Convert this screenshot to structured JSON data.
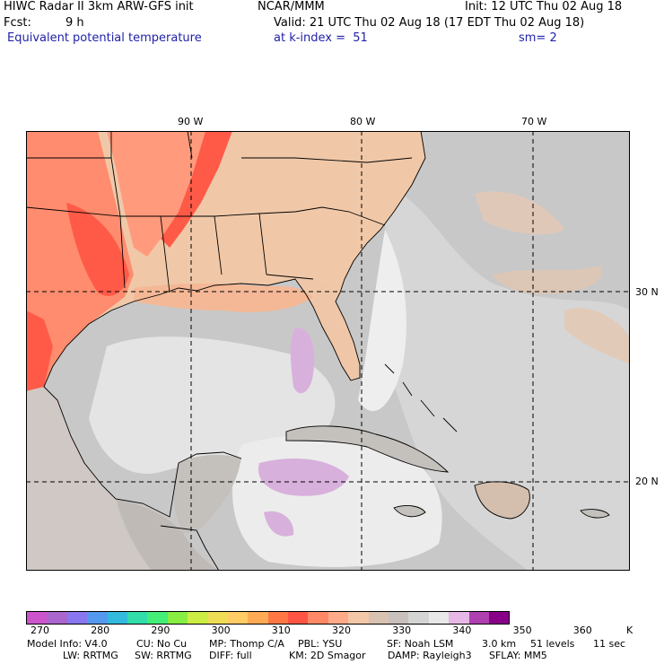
{
  "header": {
    "model": "HIWC Radar II 3km ARW-GFS init",
    "org": "NCAR/MMM",
    "init": "Init: 12 UTC Thu 02 Aug 18",
    "fcst_label": "Fcst:",
    "fcst_value": "9 h",
    "valid": "Valid: 21 UTC Thu 02 Aug 18 (17 EDT Thu 02 Aug 18)",
    "field": "Equivalent potential temperature",
    "level": "at k-index =  51",
    "smoothing": "sm= 2"
  },
  "map": {
    "longitude_labels": [
      "90 W",
      "80 W",
      "70 W"
    ],
    "latitude_labels": [
      "30 N",
      "20 N"
    ]
  },
  "colorbar": {
    "colors": [
      "#cc55cc",
      "#aa66cc",
      "#8877ee",
      "#5599ee",
      "#33bbdd",
      "#33ddaa",
      "#44ee77",
      "#88ee44",
      "#ccee44",
      "#eedd55",
      "#ffcc66",
      "#ffaa55",
      "#ff7744",
      "#ff5544",
      "#ff8866",
      "#ffaa88",
      "#f2c8a8",
      "#d9c2b2",
      "#c8c0bc",
      "#d4d4d4",
      "#e8e8e8",
      "#e6b8e6",
      "#b040b0",
      "#880088"
    ],
    "tick_labels": [
      "270",
      "280",
      "290",
      "300",
      "310",
      "320",
      "330",
      "340",
      "350",
      "360"
    ],
    "units": "K"
  },
  "model_info": {
    "line1": [
      "Model Info: V4.0",
      "CU: No Cu",
      "MP: Thomp C/A",
      "PBL: YSU",
      "SF: Noah LSM",
      "3.0 km",
      "51 levels",
      "11 sec"
    ],
    "line2": [
      "LW: RRTMG",
      "SW: RRTMG",
      "DIFF: full",
      "KM: 2D Smagor",
      "DAMP: Rayleigh3",
      "SFLAY: MM5"
    ]
  }
}
